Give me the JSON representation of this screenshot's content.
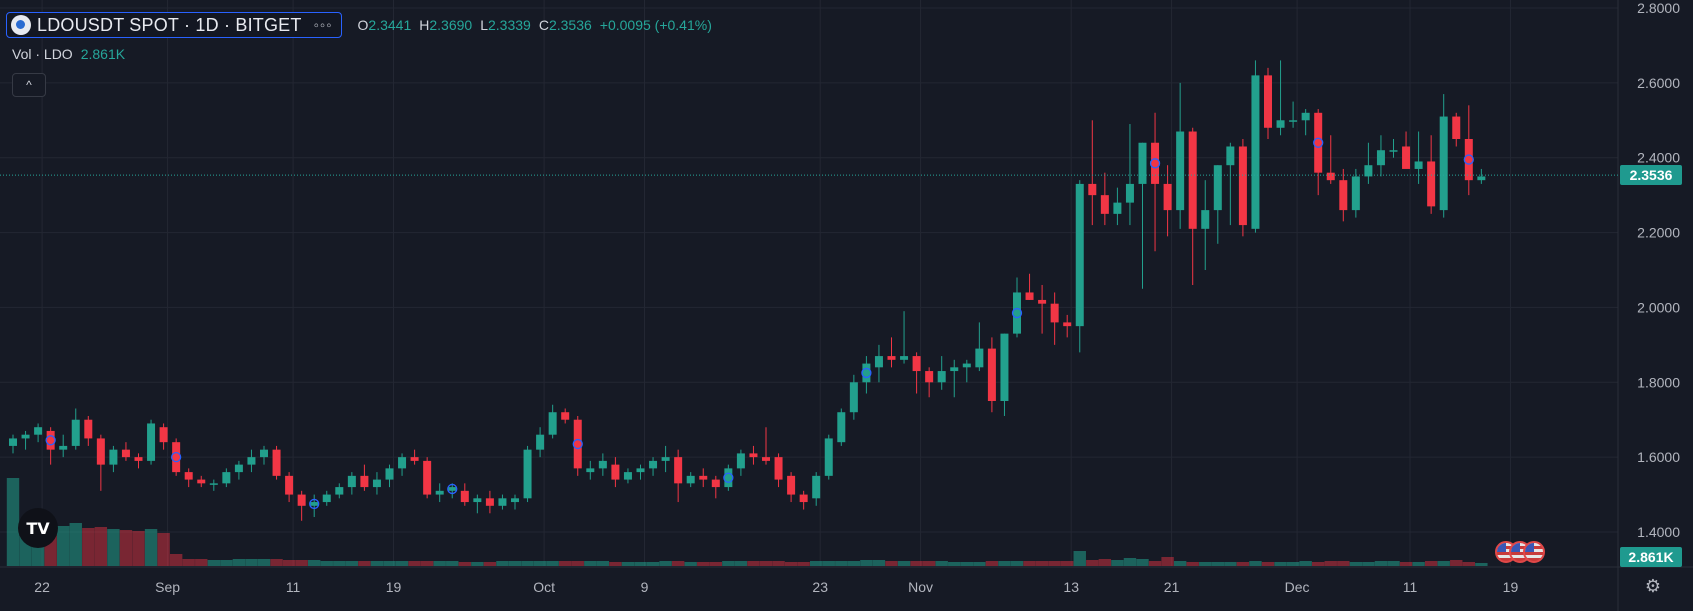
{
  "header": {
    "symbol_title": "LDOUSDT SPOT · 1D · BITGET",
    "more_label": "◦◦◦",
    "ohlc": [
      {
        "key": "O",
        "value": "2.3441"
      },
      {
        "key": "H",
        "value": "2.3690"
      },
      {
        "key": "L",
        "value": "2.3339"
      },
      {
        "key": "C",
        "value": "2.3536"
      }
    ],
    "change": "+0.0095 (+0.41%)"
  },
  "volume_legend": {
    "label": "Vol · LDO",
    "value": "2.861K"
  },
  "collapse_label": "^",
  "logo_text": "TV",
  "price_tag": "2.3536",
  "volume_tag": "2.861K",
  "colors": {
    "up": "#22a08d",
    "down": "#f23645",
    "background": "#161a25",
    "grid": "#232733",
    "current_line": "#26a69a"
  },
  "chart_data": {
    "type": "candlestick",
    "title": "LDOUSDT SPOT · 1D · BITGET",
    "ylim": [
      1.34,
      2.82
    ],
    "y_ticks": [
      "2.8000",
      "2.6000",
      "2.4000",
      "2.2000",
      "2.0000",
      "1.8000",
      "1.6000",
      "1.4000"
    ],
    "y_tick_values": [
      2.8,
      2.6,
      2.4,
      2.2,
      2.0,
      1.8,
      1.6,
      1.4
    ],
    "x_ticks": [
      {
        "label": "22",
        "index": 2
      },
      {
        "label": "Sep",
        "index": 12
      },
      {
        "label": "11",
        "index": 22
      },
      {
        "label": "19",
        "index": 30
      },
      {
        "label": "Oct",
        "index": 42
      },
      {
        "label": "9",
        "index": 50
      },
      {
        "label": "23",
        "index": 64
      },
      {
        "label": "Nov",
        "index": 72
      },
      {
        "label": "13",
        "index": 84
      },
      {
        "label": "21",
        "index": 92
      },
      {
        "label": "Dec",
        "index": 102
      },
      {
        "label": "11",
        "index": 111
      },
      {
        "label": "19",
        "index": 119
      }
    ],
    "last_close": 2.3536,
    "grid": true,
    "candles": [
      [
        1.63,
        1.66,
        1.61,
        1.65
      ],
      [
        1.65,
        1.67,
        1.62,
        1.66
      ],
      [
        1.66,
        1.69,
        1.64,
        1.68
      ],
      [
        1.67,
        1.68,
        1.58,
        1.62
      ],
      [
        1.62,
        1.66,
        1.6,
        1.63
      ],
      [
        1.63,
        1.73,
        1.62,
        1.7
      ],
      [
        1.7,
        1.71,
        1.63,
        1.65
      ],
      [
        1.65,
        1.66,
        1.51,
        1.58
      ],
      [
        1.58,
        1.63,
        1.56,
        1.62
      ],
      [
        1.62,
        1.64,
        1.59,
        1.6
      ],
      [
        1.6,
        1.61,
        1.57,
        1.59
      ],
      [
        1.59,
        1.7,
        1.58,
        1.69
      ],
      [
        1.68,
        1.69,
        1.62,
        1.64
      ],
      [
        1.64,
        1.65,
        1.55,
        1.56
      ],
      [
        1.56,
        1.57,
        1.52,
        1.54
      ],
      [
        1.54,
        1.55,
        1.52,
        1.53
      ],
      [
        1.53,
        1.54,
        1.51,
        1.53
      ],
      [
        1.53,
        1.57,
        1.52,
        1.56
      ],
      [
        1.56,
        1.59,
        1.54,
        1.58
      ],
      [
        1.58,
        1.62,
        1.56,
        1.6
      ],
      [
        1.6,
        1.63,
        1.58,
        1.62
      ],
      [
        1.62,
        1.63,
        1.54,
        1.55
      ],
      [
        1.55,
        1.56,
        1.48,
        1.5
      ],
      [
        1.5,
        1.51,
        1.43,
        1.47
      ],
      [
        1.47,
        1.5,
        1.44,
        1.48
      ],
      [
        1.48,
        1.51,
        1.47,
        1.5
      ],
      [
        1.5,
        1.53,
        1.49,
        1.52
      ],
      [
        1.52,
        1.56,
        1.5,
        1.55
      ],
      [
        1.55,
        1.58,
        1.51,
        1.52
      ],
      [
        1.52,
        1.56,
        1.5,
        1.54
      ],
      [
        1.54,
        1.58,
        1.52,
        1.57
      ],
      [
        1.57,
        1.61,
        1.55,
        1.6
      ],
      [
        1.6,
        1.62,
        1.58,
        1.59
      ],
      [
        1.59,
        1.6,
        1.49,
        1.5
      ],
      [
        1.5,
        1.53,
        1.48,
        1.51
      ],
      [
        1.51,
        1.53,
        1.49,
        1.52
      ],
      [
        1.51,
        1.53,
        1.47,
        1.48
      ],
      [
        1.48,
        1.5,
        1.45,
        1.49
      ],
      [
        1.49,
        1.51,
        1.45,
        1.47
      ],
      [
        1.47,
        1.5,
        1.46,
        1.49
      ],
      [
        1.48,
        1.5,
        1.46,
        1.49
      ],
      [
        1.49,
        1.63,
        1.48,
        1.62
      ],
      [
        1.62,
        1.68,
        1.6,
        1.66
      ],
      [
        1.66,
        1.74,
        1.65,
        1.72
      ],
      [
        1.72,
        1.73,
        1.69,
        1.7
      ],
      [
        1.7,
        1.71,
        1.55,
        1.57
      ],
      [
        1.56,
        1.59,
        1.54,
        1.57
      ],
      [
        1.57,
        1.61,
        1.55,
        1.59
      ],
      [
        1.58,
        1.6,
        1.52,
        1.54
      ],
      [
        1.54,
        1.57,
        1.53,
        1.56
      ],
      [
        1.56,
        1.58,
        1.54,
        1.57
      ],
      [
        1.57,
        1.6,
        1.55,
        1.59
      ],
      [
        1.59,
        1.63,
        1.56,
        1.6
      ],
      [
        1.6,
        1.62,
        1.48,
        1.53
      ],
      [
        1.53,
        1.56,
        1.52,
        1.55
      ],
      [
        1.55,
        1.57,
        1.52,
        1.54
      ],
      [
        1.54,
        1.55,
        1.49,
        1.52
      ],
      [
        1.52,
        1.58,
        1.51,
        1.57
      ],
      [
        1.57,
        1.62,
        1.55,
        1.61
      ],
      [
        1.61,
        1.63,
        1.58,
        1.6
      ],
      [
        1.6,
        1.68,
        1.58,
        1.59
      ],
      [
        1.6,
        1.61,
        1.52,
        1.54
      ],
      [
        1.55,
        1.56,
        1.48,
        1.5
      ],
      [
        1.5,
        1.51,
        1.46,
        1.48
      ],
      [
        1.49,
        1.56,
        1.47,
        1.55
      ],
      [
        1.55,
        1.66,
        1.54,
        1.65
      ],
      [
        1.64,
        1.73,
        1.63,
        1.72
      ],
      [
        1.72,
        1.82,
        1.7,
        1.8
      ],
      [
        1.8,
        1.87,
        1.77,
        1.85
      ],
      [
        1.84,
        1.9,
        1.8,
        1.87
      ],
      [
        1.87,
        1.92,
        1.84,
        1.86
      ],
      [
        1.86,
        1.99,
        1.85,
        1.87
      ],
      [
        1.87,
        1.88,
        1.77,
        1.83
      ],
      [
        1.83,
        1.84,
        1.76,
        1.8
      ],
      [
        1.8,
        1.87,
        1.78,
        1.83
      ],
      [
        1.83,
        1.86,
        1.76,
        1.84
      ],
      [
        1.84,
        1.86,
        1.8,
        1.85
      ],
      [
        1.84,
        1.96,
        1.83,
        1.89
      ],
      [
        1.89,
        1.92,
        1.72,
        1.75
      ],
      [
        1.75,
        1.93,
        1.71,
        1.93
      ],
      [
        1.93,
        2.08,
        1.92,
        2.04
      ],
      [
        2.04,
        2.09,
        2.02,
        2.02
      ],
      [
        2.02,
        2.06,
        1.93,
        2.01
      ],
      [
        2.01,
        2.04,
        1.9,
        1.96
      ],
      [
        1.96,
        1.98,
        1.92,
        1.95
      ],
      [
        1.95,
        2.34,
        1.88,
        2.33
      ],
      [
        2.33,
        2.5,
        2.22,
        2.3
      ],
      [
        2.3,
        2.36,
        2.22,
        2.25
      ],
      [
        2.25,
        2.32,
        2.22,
        2.28
      ],
      [
        2.28,
        2.49,
        2.22,
        2.33
      ],
      [
        2.33,
        2.44,
        2.05,
        2.44
      ],
      [
        2.44,
        2.52,
        2.15,
        2.33
      ],
      [
        2.33,
        2.38,
        2.19,
        2.26
      ],
      [
        2.26,
        2.6,
        2.21,
        2.47
      ],
      [
        2.47,
        2.48,
        2.06,
        2.21
      ],
      [
        2.21,
        2.34,
        2.1,
        2.26
      ],
      [
        2.26,
        2.38,
        2.17,
        2.38
      ],
      [
        2.38,
        2.44,
        2.22,
        2.43
      ],
      [
        2.43,
        2.45,
        2.19,
        2.22
      ],
      [
        2.21,
        2.66,
        2.2,
        2.62
      ],
      [
        2.62,
        2.64,
        2.45,
        2.48
      ],
      [
        2.48,
        2.66,
        2.46,
        2.5
      ],
      [
        2.5,
        2.55,
        2.48,
        2.5
      ],
      [
        2.5,
        2.53,
        2.46,
        2.52
      ],
      [
        2.52,
        2.53,
        2.3,
        2.36
      ],
      [
        2.36,
        2.46,
        2.33,
        2.34
      ],
      [
        2.34,
        2.37,
        2.23,
        2.26
      ],
      [
        2.26,
        2.37,
        2.24,
        2.35
      ],
      [
        2.35,
        2.44,
        2.33,
        2.38
      ],
      [
        2.38,
        2.46,
        2.35,
        2.42
      ],
      [
        2.42,
        2.45,
        2.4,
        2.42
      ],
      [
        2.43,
        2.47,
        2.38,
        2.37
      ],
      [
        2.37,
        2.47,
        2.33,
        2.39
      ],
      [
        2.39,
        2.46,
        2.25,
        2.27
      ],
      [
        2.26,
        2.57,
        2.24,
        2.51
      ],
      [
        2.51,
        2.52,
        2.43,
        2.45
      ],
      [
        2.45,
        2.54,
        2.3,
        2.34
      ],
      [
        2.34,
        2.37,
        2.33,
        2.35
      ]
    ],
    "volumes": [
      0.88,
      0.42,
      0.41,
      0.41,
      0.4,
      0.43,
      0.38,
      0.39,
      0.37,
      0.36,
      0.35,
      0.37,
      0.33,
      0.12,
      0.07,
      0.07,
      0.06,
      0.06,
      0.07,
      0.07,
      0.07,
      0.07,
      0.06,
      0.06,
      0.06,
      0.05,
      0.05,
      0.05,
      0.05,
      0.05,
      0.05,
      0.05,
      0.05,
      0.05,
      0.05,
      0.05,
      0.04,
      0.04,
      0.04,
      0.05,
      0.05,
      0.05,
      0.05,
      0.05,
      0.05,
      0.05,
      0.05,
      0.05,
      0.04,
      0.04,
      0.04,
      0.04,
      0.05,
      0.05,
      0.04,
      0.04,
      0.04,
      0.05,
      0.05,
      0.05,
      0.05,
      0.05,
      0.04,
      0.04,
      0.05,
      0.05,
      0.05,
      0.05,
      0.06,
      0.06,
      0.05,
      0.05,
      0.05,
      0.05,
      0.05,
      0.04,
      0.04,
      0.04,
      0.05,
      0.05,
      0.05,
      0.05,
      0.05,
      0.05,
      0.05,
      0.15,
      0.06,
      0.07,
      0.06,
      0.08,
      0.07,
      0.05,
      0.09,
      0.05,
      0.04,
      0.04,
      0.04,
      0.04,
      0.04,
      0.05,
      0.04,
      0.04,
      0.04,
      0.05,
      0.04,
      0.05,
      0.05,
      0.04,
      0.04,
      0.05,
      0.05,
      0.04,
      0.04,
      0.05,
      0.05,
      0.06,
      0.04,
      0.03,
      0.01
    ],
    "event_markers": [
      3,
      13,
      24,
      35,
      45,
      57,
      68,
      80,
      91,
      104,
      116
    ],
    "calendar_flags": 3
  }
}
